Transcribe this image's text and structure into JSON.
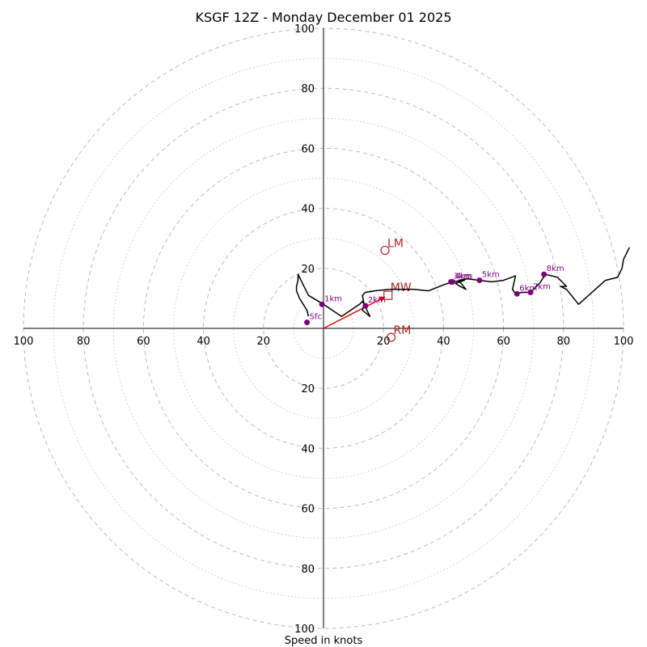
{
  "chart_data": {
    "type": "hodograph",
    "title": "KSGF 12Z - Monday December 01 2025",
    "xlabel": "Speed in knots",
    "range": [
      -100,
      100
    ],
    "tick_step": 20,
    "x_tick_labels": [
      "100",
      "80",
      "60",
      "40",
      "20",
      "20",
      "40",
      "60",
      "80",
      "100"
    ],
    "y_tick_labels": [
      "100",
      "80",
      "60",
      "40",
      "20",
      "20",
      "40",
      "60",
      "80",
      "100"
    ],
    "ring_major_every": 20,
    "ring_minor_every": 10,
    "colors": {
      "trace": "#000000",
      "marker": "#7f007f",
      "motion": "#b22222",
      "mean_wind": "#ff0000",
      "ring": "#bbbbbb",
      "axis": "#000000"
    },
    "trace": [
      [
        -5,
        4
      ],
      [
        -5.5,
        6
      ],
      [
        -8,
        10
      ],
      [
        -9,
        12.5
      ],
      [
        -9,
        14
      ],
      [
        -8.5,
        16
      ],
      [
        -8.5,
        18
      ],
      [
        -5,
        11
      ],
      [
        0,
        8
      ],
      [
        3,
        6
      ],
      [
        6,
        4
      ],
      [
        9,
        6
      ],
      [
        12,
        8
      ],
      [
        13,
        9
      ],
      [
        14,
        7
      ],
      [
        15.5,
        4
      ],
      [
        13,
        6
      ],
      [
        13.5,
        8
      ],
      [
        13,
        11
      ],
      [
        14,
        12
      ],
      [
        17,
        12.5
      ],
      [
        22,
        13
      ],
      [
        25,
        13
      ],
      [
        30,
        13
      ],
      [
        35,
        12.5
      ],
      [
        40,
        14.5
      ],
      [
        43,
        15.5
      ],
      [
        47,
        16
      ],
      [
        44,
        15
      ],
      [
        45.5,
        14
      ],
      [
        47.5,
        13
      ],
      [
        45,
        16
      ],
      [
        48,
        16.5
      ],
      [
        52,
        16
      ],
      [
        56,
        15.5
      ],
      [
        60,
        16
      ],
      [
        64,
        17.5
      ],
      [
        63,
        13
      ],
      [
        64,
        11.5
      ],
      [
        66,
        12
      ],
      [
        69,
        12
      ],
      [
        72,
        15
      ],
      [
        74,
        18
      ],
      [
        78,
        17
      ],
      [
        81,
        14
      ],
      [
        79,
        14
      ],
      [
        81,
        13
      ],
      [
        85,
        8
      ],
      [
        94,
        16
      ],
      [
        98,
        17
      ],
      [
        99.5,
        20
      ],
      [
        100,
        23
      ],
      [
        102,
        27
      ]
    ],
    "height_markers": [
      {
        "label": "Sfc",
        "u": -5.5,
        "v": 2
      },
      {
        "label": "1km",
        "u": -0.5,
        "v": 8
      },
      {
        "label": "2km",
        "u": 14,
        "v": 7.5
      },
      {
        "label": "3km",
        "u": 42.5,
        "v": 15.5
      },
      {
        "label": "4km",
        "u": 43,
        "v": 15.5
      },
      {
        "label": "5km",
        "u": 52,
        "v": 16
      },
      {
        "label": "6km",
        "u": 64.5,
        "v": 11.5
      },
      {
        "label": "7km",
        "u": 69,
        "v": 12
      },
      {
        "label": "8km",
        "u": 73.5,
        "v": 18
      }
    ],
    "storm_motions": [
      {
        "label": "LM",
        "u": 20.5,
        "v": 26
      },
      {
        "label": "RM",
        "u": 22.5,
        "v": -3
      }
    ],
    "mean_wind": {
      "label": "MW",
      "u": 21.5,
      "v": 11
    }
  }
}
